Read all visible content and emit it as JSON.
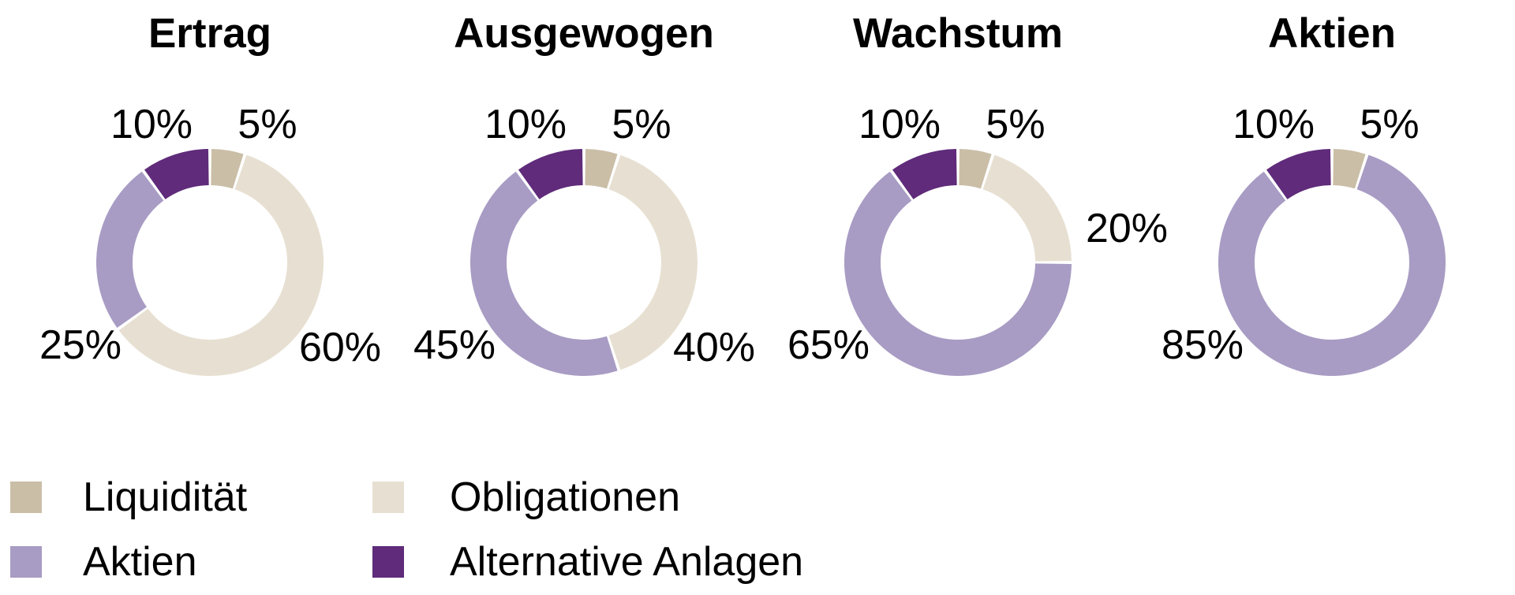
{
  "page": {
    "background": "#ffffff",
    "text_color": "#000000"
  },
  "colors": {
    "Liquidität": "#cabea7",
    "Obligationen": "#e7e0d2",
    "Aktien": "#a89cc4",
    "Alternative Anlagen": "#5f2b7a"
  },
  "chart_data": {
    "type": "donut",
    "unit": "%",
    "direction": "clockwise",
    "start_angle_deg": 0,
    "inner_radius_ratio": 0.68,
    "series_names": [
      "Liquidität",
      "Obligationen",
      "Aktien",
      "Alternative Anlagen"
    ],
    "charts": [
      {
        "title": "Ertrag",
        "segments": [
          {
            "name": "Liquidität",
            "value": 5,
            "label": "5%",
            "label_pos": "top-right"
          },
          {
            "name": "Obligationen",
            "value": 60,
            "label": "60%",
            "label_pos": "bottom-right"
          },
          {
            "name": "Aktien",
            "value": 25,
            "label": "25%",
            "label_pos": "bottom-left"
          },
          {
            "name": "Alternative Anlagen",
            "value": 10,
            "label": "10%",
            "label_pos": "top-left"
          }
        ]
      },
      {
        "title": "Ausgewogen",
        "segments": [
          {
            "name": "Liquidität",
            "value": 5,
            "label": "5%",
            "label_pos": "top-right"
          },
          {
            "name": "Obligationen",
            "value": 40,
            "label": "40%",
            "label_pos": "bottom-right"
          },
          {
            "name": "Aktien",
            "value": 45,
            "label": "45%",
            "label_pos": "bottom-left"
          },
          {
            "name": "Alternative Anlagen",
            "value": 10,
            "label": "10%",
            "label_pos": "top-left"
          }
        ]
      },
      {
        "title": "Wachstum",
        "segments": [
          {
            "name": "Liquidität",
            "value": 5,
            "label": "5%",
            "label_pos": "top-right"
          },
          {
            "name": "Obligationen",
            "value": 20,
            "label": "20%",
            "label_pos": "right"
          },
          {
            "name": "Aktien",
            "value": 65,
            "label": "65%",
            "label_pos": "bottom-left"
          },
          {
            "name": "Alternative Anlagen",
            "value": 10,
            "label": "10%",
            "label_pos": "top-left"
          }
        ]
      },
      {
        "title": "Aktien",
        "segments": [
          {
            "name": "Liquidität",
            "value": 5,
            "label": "5%",
            "label_pos": "top-right"
          },
          {
            "name": "Aktien",
            "value": 85,
            "label": "85%",
            "label_pos": "bottom-left"
          },
          {
            "name": "Alternative Anlagen",
            "value": 10,
            "label": "10%",
            "label_pos": "top-left"
          }
        ]
      }
    ],
    "legend": [
      {
        "label": "Liquidität"
      },
      {
        "label": "Aktien"
      },
      {
        "label": "Obligationen"
      },
      {
        "label": "Alternative Anlagen"
      }
    ]
  }
}
